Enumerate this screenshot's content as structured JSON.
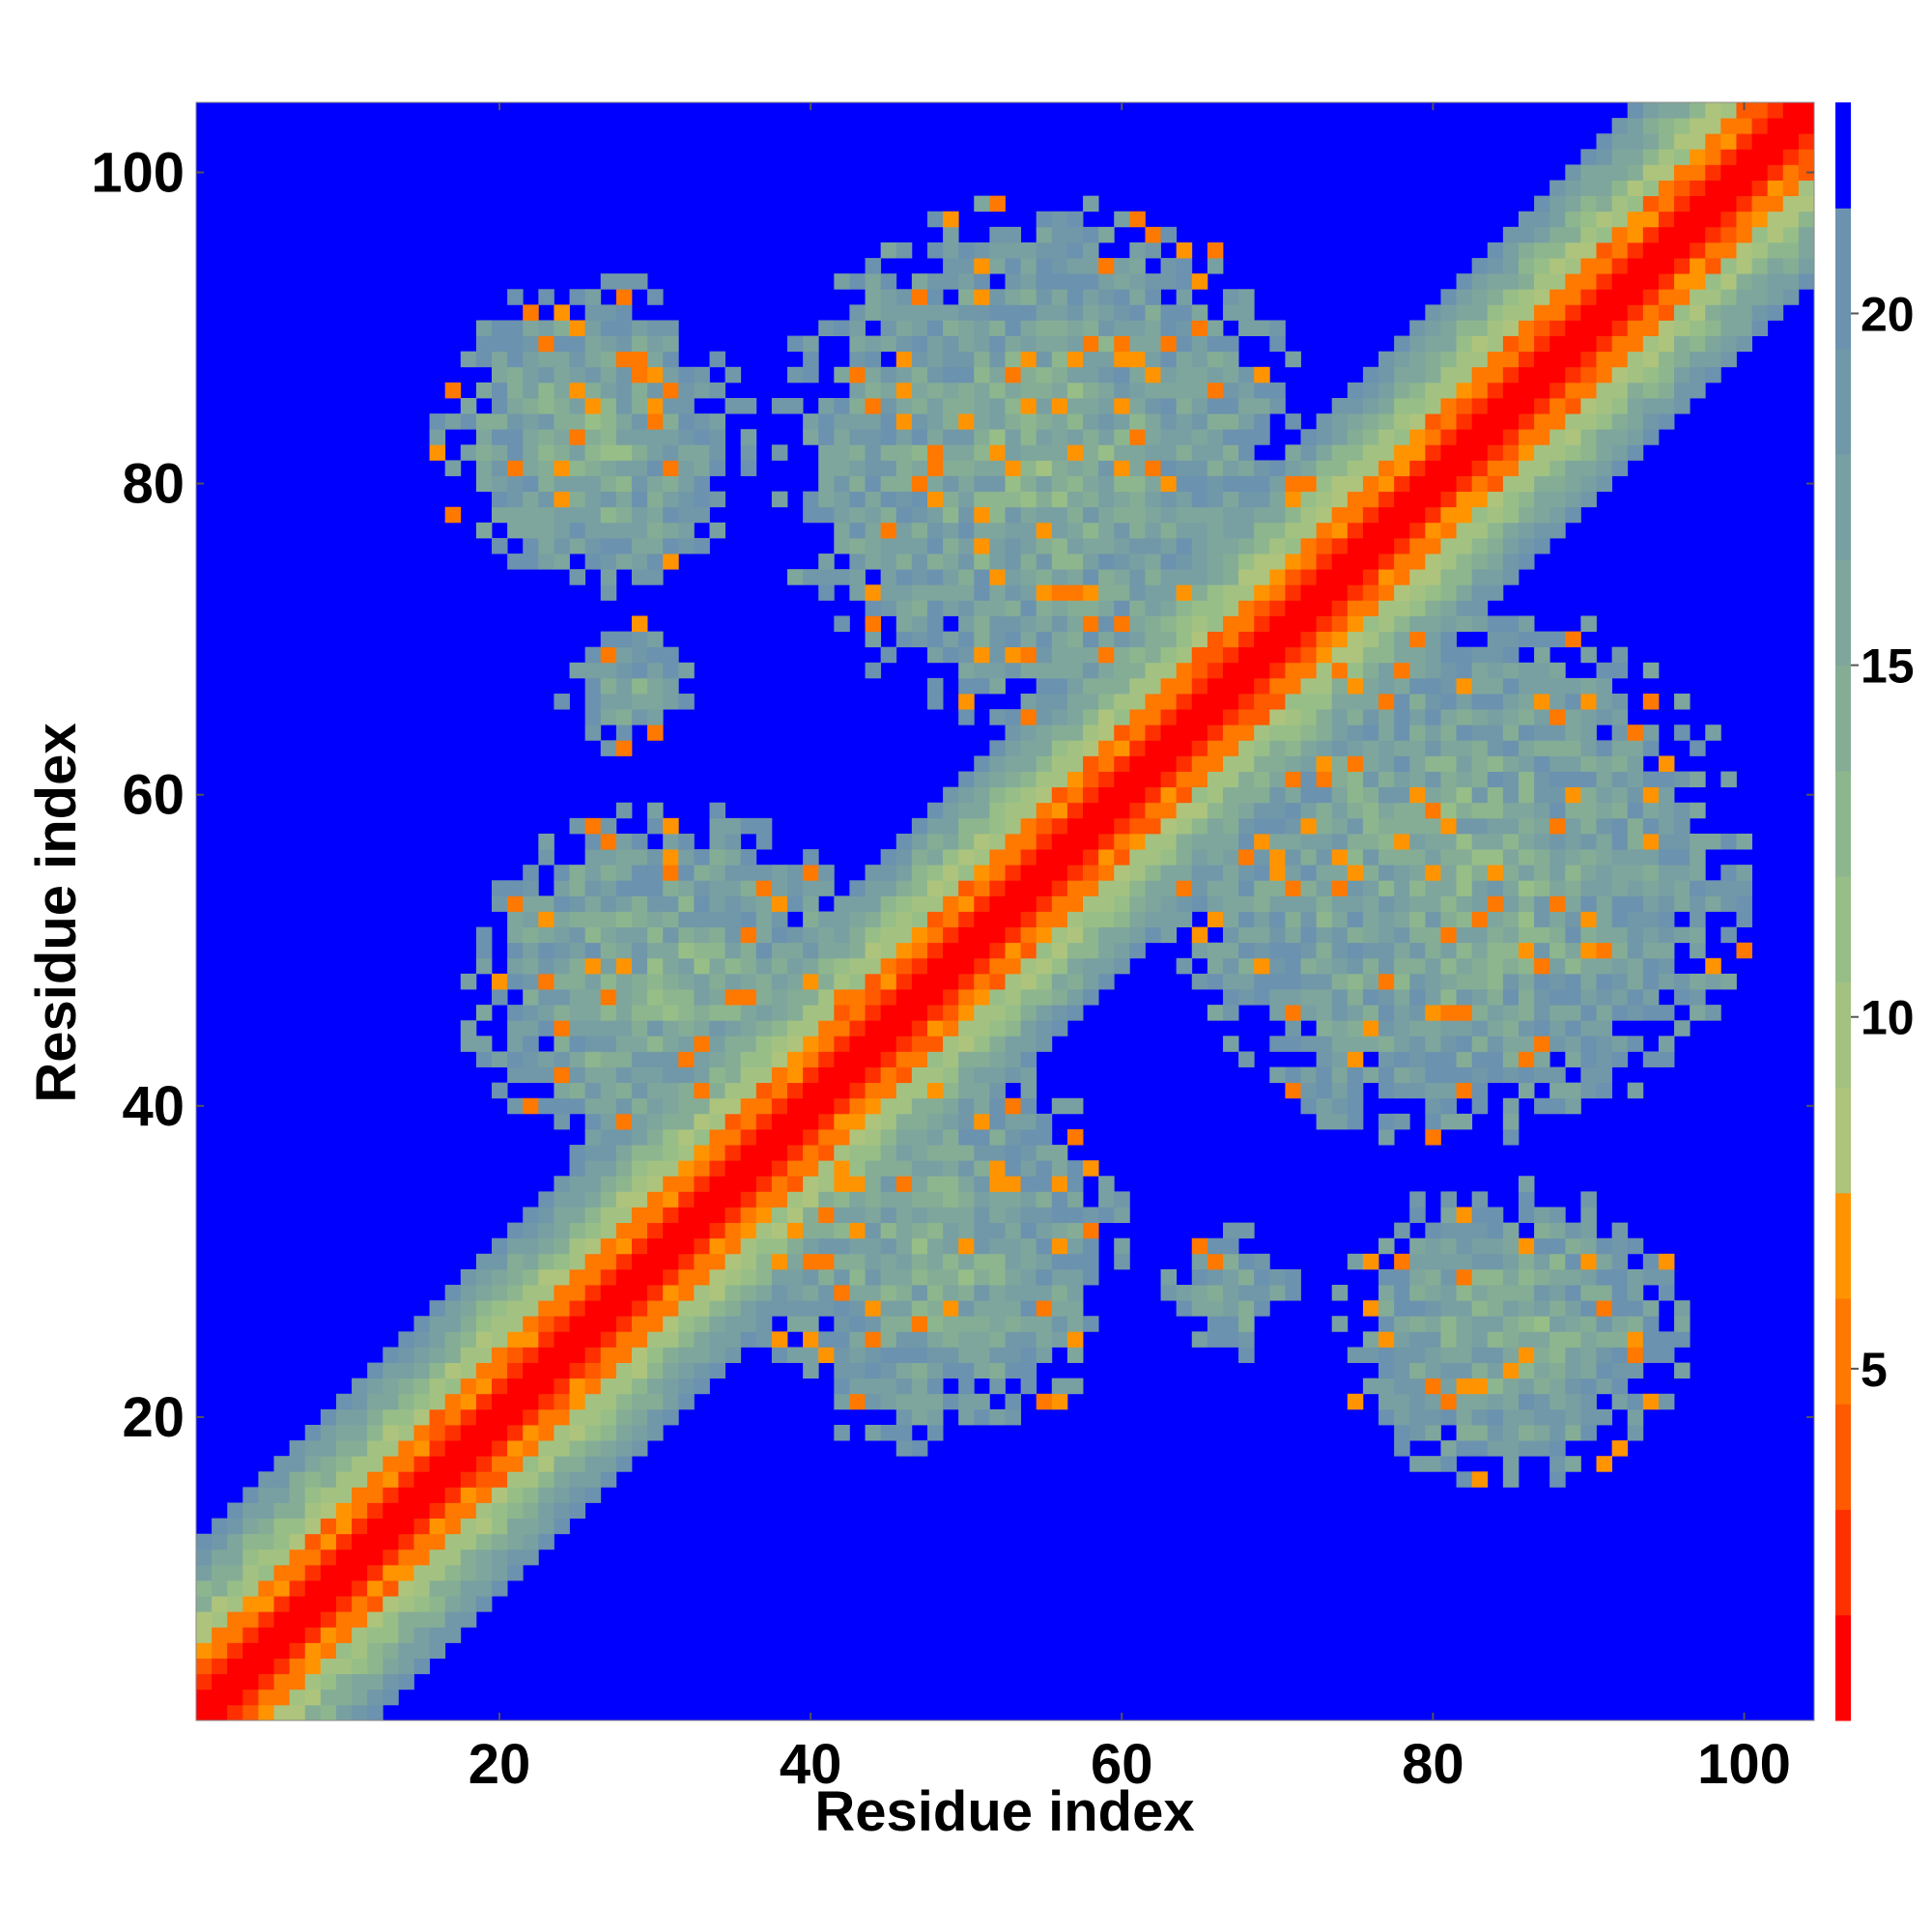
{
  "chart_data": {
    "type": "heatmap",
    "title": "",
    "xlabel": "Residue index",
    "ylabel": "Residue index",
    "xlim": [
      1,
      104
    ],
    "ylim": [
      1,
      104
    ],
    "x_ticks": [
      20,
      40,
      60,
      80,
      100
    ],
    "y_ticks": [
      20,
      40,
      60,
      80,
      100
    ],
    "n_residues": 104,
    "colorbar": {
      "ticks": [
        5,
        10,
        15,
        20
      ],
      "range": [
        0,
        23
      ],
      "bins": [
        {
          "max": 1.5,
          "color": "#ff0000"
        },
        {
          "max": 3.0,
          "color": "#ff3000"
        },
        {
          "max": 4.5,
          "color": "#ff5a00"
        },
        {
          "max": 6.0,
          "color": "#ff7800"
        },
        {
          "max": 7.5,
          "color": "#ff9400"
        },
        {
          "max": 9.0,
          "color": "#aec47c"
        },
        {
          "max": 10.5,
          "color": "#a3c282"
        },
        {
          "max": 12.0,
          "color": "#98be88"
        },
        {
          "max": 13.5,
          "color": "#8eb68e"
        },
        {
          "max": 15.0,
          "color": "#85ad96"
        },
        {
          "max": 16.5,
          "color": "#7fa69c"
        },
        {
          "max": 18.0,
          "color": "#78a0a2"
        },
        {
          "max": 19.5,
          "color": "#7198a8"
        },
        {
          "max": 21.5,
          "color": "#6b92ae"
        },
        {
          "max": 999,
          "color": "#0000ff"
        }
      ]
    },
    "background_color": "#0000ff",
    "contact_blocks": [
      {
        "x": [
          16,
          36
        ],
        "y": [
          73,
          93
        ],
        "d": 14
      },
      {
        "x": [
          38,
          72
        ],
        "y": [
          65,
          98
        ],
        "d": 14
      },
      {
        "x": [
          74,
          96
        ],
        "y": [
          16,
          35
        ],
        "d": 14
      },
      {
        "x": [
          63,
          100
        ],
        "y": [
          38,
          72
        ],
        "d": 14
      },
      {
        "x": [
          18,
          44
        ],
        "y": [
          36,
          59
        ],
        "d": 14
      },
      {
        "x": [
          36,
          60
        ],
        "y": [
          18,
          44
        ],
        "d": 14
      },
      {
        "x": [
          24,
          32
        ],
        "y": [
          63,
          71
        ],
        "d": 15
      },
      {
        "x": [
          63,
          71
        ],
        "y": [
          24,
          32
        ],
        "d": 15
      }
    ]
  }
}
